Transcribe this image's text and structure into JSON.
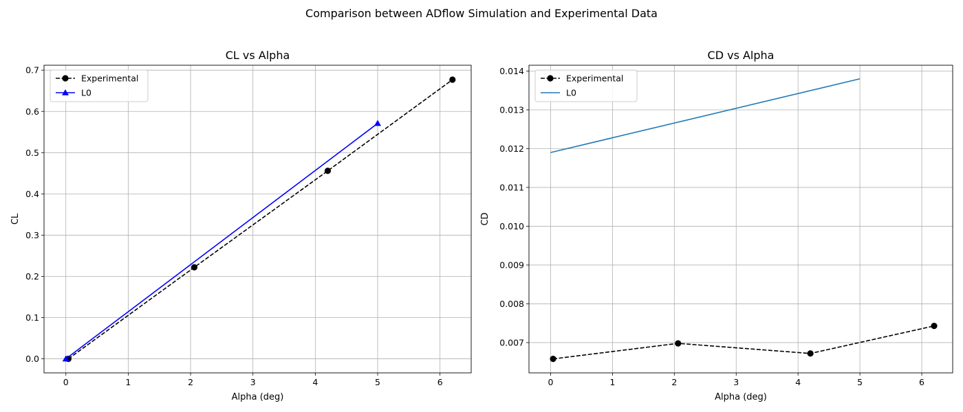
{
  "figure_title": "Comparison between ADflow Simulation and Experimental Data",
  "chart_data": [
    {
      "type": "line",
      "title": "CL vs Alpha",
      "xlabel": "Alpha (deg)",
      "ylabel": "CL",
      "xlim": [
        -0.35,
        6.5
      ],
      "ylim": [
        -0.034,
        0.712
      ],
      "xticks": [
        0,
        1,
        2,
        3,
        4,
        5,
        6
      ],
      "yticks": [
        0.0,
        0.1,
        0.2,
        0.3,
        0.4,
        0.5,
        0.6,
        0.7
      ],
      "ytick_labels": [
        "0.0",
        "0.1",
        "0.2",
        "0.3",
        "0.4",
        "0.5",
        "0.6",
        "0.7"
      ],
      "grid": true,
      "legend_position": "upper-left",
      "series": [
        {
          "name": "Experimental",
          "color": "#000000",
          "linestyle": "dashed",
          "marker": "circle",
          "x": [
            0.04,
            2.06,
            4.2,
            6.2
          ],
          "y": [
            0.0,
            0.222,
            0.456,
            0.677
          ]
        },
        {
          "name": "L0",
          "color": "#0000ff",
          "linestyle": "solid",
          "marker": "triangle",
          "x": [
            0.0,
            5.0
          ],
          "y": [
            0.0,
            0.571
          ]
        }
      ]
    },
    {
      "type": "line",
      "title": "CD vs Alpha",
      "xlabel": "Alpha (deg)",
      "ylabel": "CD",
      "xlim": [
        -0.35,
        6.5
      ],
      "ylim": [
        0.00622,
        0.01415
      ],
      "xticks": [
        0,
        1,
        2,
        3,
        4,
        5,
        6
      ],
      "yticks": [
        0.007,
        0.008,
        0.009,
        0.01,
        0.011,
        0.012,
        0.013,
        0.014
      ],
      "ytick_labels": [
        "0.007",
        "0.008",
        "0.009",
        "0.010",
        "0.011",
        "0.012",
        "0.013",
        "0.014"
      ],
      "grid": true,
      "legend_position": "upper-left",
      "series": [
        {
          "name": "Experimental",
          "color": "#000000",
          "linestyle": "dashed",
          "marker": "circle",
          "x": [
            0.04,
            2.06,
            4.2,
            6.2
          ],
          "y": [
            0.00658,
            0.00698,
            0.00672,
            0.00743
          ]
        },
        {
          "name": "L0",
          "color": "#1f77b4",
          "linestyle": "solid",
          "marker": "none",
          "x": [
            0.0,
            5.0
          ],
          "y": [
            0.0119,
            0.0138
          ]
        }
      ]
    }
  ]
}
